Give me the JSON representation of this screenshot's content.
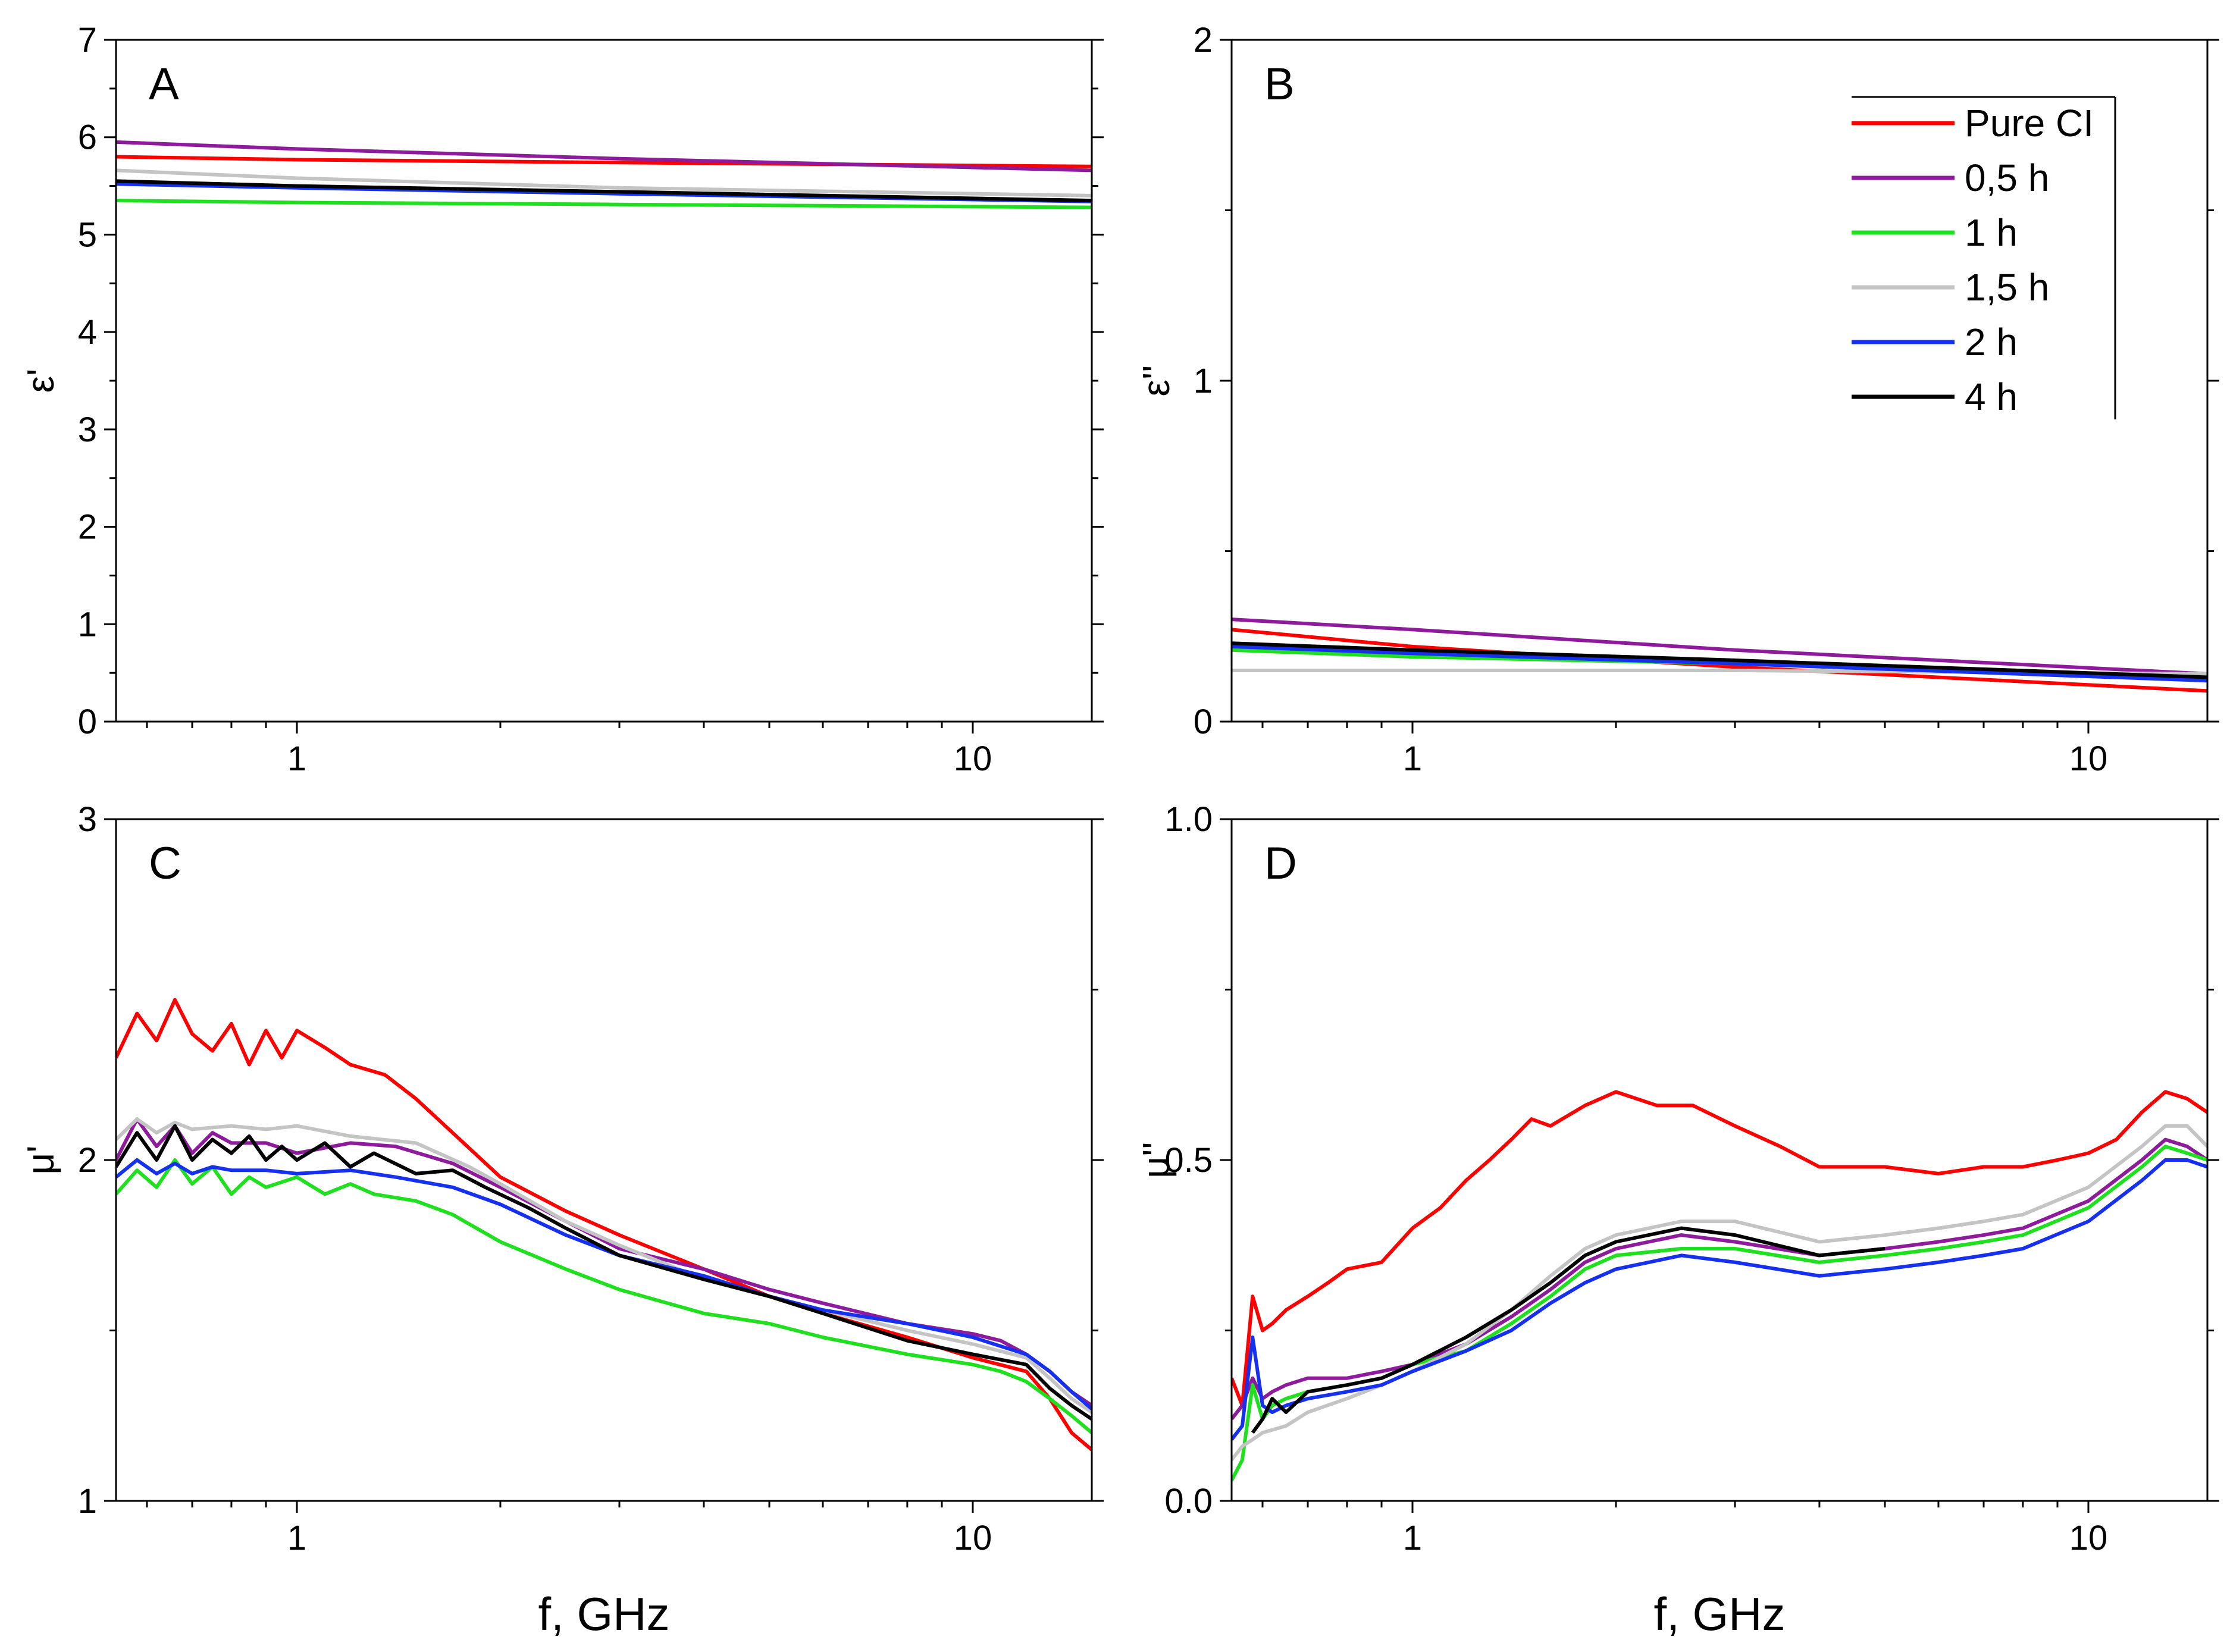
{
  "figure": {
    "xlabel": "f, GHz",
    "legend": [
      {
        "name": "Pure CI",
        "color": "#ff0000"
      },
      {
        "name": "0,5 h",
        "color": "#8e1a9c"
      },
      {
        "name": "1 h",
        "color": "#1ee01e"
      },
      {
        "name": "1,5 h",
        "color": "#c4c4c4"
      },
      {
        "name": "2 h",
        "color": "#1530ee"
      },
      {
        "name": "4 h",
        "color": "#000000"
      }
    ]
  },
  "chart_data": [
    {
      "type": "line",
      "panel": "A",
      "ylabel": "ε'",
      "xscale": "log",
      "xlim": [
        0.54,
        15
      ],
      "ylim": [
        0,
        7
      ],
      "xticks": [
        1,
        10
      ],
      "xticklabels": [
        "1",
        "10"
      ],
      "yticks": [
        0,
        1,
        2,
        3,
        4,
        5,
        6,
        7
      ],
      "yticklabels": [
        "0",
        "1",
        "2",
        "3",
        "4",
        "5",
        "6",
        "7"
      ],
      "series": [
        {
          "name": "Pure CI",
          "color": "#ff0000",
          "x": [
            0.54,
            1,
            3,
            15
          ],
          "y": [
            5.8,
            5.77,
            5.74,
            5.7
          ]
        },
        {
          "name": "0,5 h",
          "color": "#8e1a9c",
          "x": [
            0.54,
            1,
            3,
            15
          ],
          "y": [
            5.95,
            5.88,
            5.78,
            5.66
          ]
        },
        {
          "name": "1 h",
          "color": "#1ee01e",
          "x": [
            0.54,
            1,
            3,
            15
          ],
          "y": [
            5.35,
            5.33,
            5.31,
            5.28
          ]
        },
        {
          "name": "1,5 h",
          "color": "#c4c4c4",
          "x": [
            0.54,
            1,
            3,
            15
          ],
          "y": [
            5.66,
            5.58,
            5.48,
            5.4
          ]
        },
        {
          "name": "2 h",
          "color": "#1530ee",
          "x": [
            0.54,
            1,
            3,
            15
          ],
          "y": [
            5.52,
            5.48,
            5.42,
            5.34
          ]
        },
        {
          "name": "4 h",
          "color": "#000000",
          "x": [
            0.54,
            1,
            3,
            15
          ],
          "y": [
            5.55,
            5.5,
            5.44,
            5.35
          ]
        }
      ]
    },
    {
      "type": "line",
      "panel": "B",
      "ylabel": "ε''",
      "xscale": "log",
      "xlim": [
        0.54,
        15
      ],
      "ylim": [
        0,
        2
      ],
      "xticks": [
        1,
        10
      ],
      "xticklabels": [
        "1",
        "10"
      ],
      "yticks": [
        0,
        1,
        2
      ],
      "yticklabels": [
        "0",
        "1",
        "2"
      ],
      "series": [
        {
          "name": "Pure CI",
          "color": "#ff0000",
          "x": [
            0.54,
            1,
            3,
            15
          ],
          "y": [
            0.27,
            0.22,
            0.16,
            0.09
          ]
        },
        {
          "name": "0,5 h",
          "color": "#8e1a9c",
          "x": [
            0.54,
            1,
            3,
            15
          ],
          "y": [
            0.3,
            0.27,
            0.21,
            0.14
          ]
        },
        {
          "name": "1 h",
          "color": "#1ee01e",
          "x": [
            0.54,
            1,
            3,
            15
          ],
          "y": [
            0.21,
            0.19,
            0.17,
            0.13
          ]
        },
        {
          "name": "1,5 h",
          "color": "#c4c4c4",
          "x": [
            0.54,
            1,
            3,
            15
          ],
          "y": [
            0.15,
            0.15,
            0.15,
            0.14
          ]
        },
        {
          "name": "2 h",
          "color": "#1530ee",
          "x": [
            0.54,
            1,
            3,
            15
          ],
          "y": [
            0.22,
            0.2,
            0.17,
            0.12
          ]
        },
        {
          "name": "4 h",
          "color": "#000000",
          "x": [
            0.54,
            1,
            3,
            15
          ],
          "y": [
            0.23,
            0.21,
            0.18,
            0.13
          ]
        }
      ]
    },
    {
      "type": "line",
      "panel": "C",
      "ylabel": "μ'",
      "xscale": "log",
      "xlim": [
        0.54,
        15
      ],
      "ylim": [
        1,
        3
      ],
      "xticks": [
        1,
        10
      ],
      "xticklabels": [
        "1",
        "10"
      ],
      "yticks": [
        1,
        2,
        3
      ],
      "yticklabels": [
        "1",
        "2",
        "3"
      ],
      "series": [
        {
          "name": "Pure CI",
          "color": "#ff0000",
          "x": [
            0.54,
            0.58,
            0.62,
            0.66,
            0.7,
            0.75,
            0.8,
            0.85,
            0.9,
            0.95,
            1.0,
            1.1,
            1.2,
            1.35,
            1.5,
            1.7,
            2.0,
            2.5,
            3.0,
            4.0,
            5.0,
            6.0,
            8.0,
            10.0,
            12.0,
            13.0,
            14.0,
            15.0
          ],
          "y": [
            2.3,
            2.43,
            2.35,
            2.47,
            2.37,
            2.32,
            2.4,
            2.28,
            2.38,
            2.3,
            2.38,
            2.33,
            2.28,
            2.25,
            2.18,
            2.08,
            1.95,
            1.85,
            1.78,
            1.68,
            1.6,
            1.55,
            1.48,
            1.42,
            1.38,
            1.3,
            1.2,
            1.15
          ]
        },
        {
          "name": "0,5 h",
          "color": "#8e1a9c",
          "x": [
            0.54,
            0.58,
            0.62,
            0.66,
            0.7,
            0.75,
            0.8,
            0.9,
            1.0,
            1.2,
            1.4,
            1.7,
            2.0,
            2.5,
            3.0,
            4.0,
            5.0,
            6.0,
            8.0,
            10.0,
            11.0,
            12.0,
            13.0,
            14.0,
            15.0
          ],
          "y": [
            2.0,
            2.12,
            2.04,
            2.1,
            2.02,
            2.08,
            2.05,
            2.05,
            2.02,
            2.05,
            2.04,
            1.99,
            1.92,
            1.82,
            1.74,
            1.68,
            1.62,
            1.58,
            1.52,
            1.49,
            1.47,
            1.43,
            1.38,
            1.32,
            1.28
          ]
        },
        {
          "name": "1 h",
          "color": "#1ee01e",
          "x": [
            0.54,
            0.58,
            0.62,
            0.66,
            0.7,
            0.75,
            0.8,
            0.85,
            0.9,
            1.0,
            1.1,
            1.2,
            1.3,
            1.5,
            1.7,
            2.0,
            2.5,
            3.0,
            4.0,
            5.0,
            6.0,
            8.0,
            10.0,
            11.0,
            12.0,
            13.0,
            14.0,
            15.0
          ],
          "y": [
            1.9,
            1.97,
            1.92,
            2.0,
            1.93,
            1.98,
            1.9,
            1.95,
            1.92,
            1.95,
            1.9,
            1.93,
            1.9,
            1.88,
            1.84,
            1.76,
            1.68,
            1.62,
            1.55,
            1.52,
            1.48,
            1.43,
            1.4,
            1.38,
            1.35,
            1.3,
            1.25,
            1.2
          ]
        },
        {
          "name": "1,5 h",
          "color": "#c4c4c4",
          "x": [
            0.54,
            0.58,
            0.62,
            0.66,
            0.7,
            0.8,
            0.9,
            1.0,
            1.2,
            1.5,
            1.8,
            2.0,
            2.5,
            3.0,
            4.0,
            5.0,
            6.0,
            8.0,
            10.0,
            12.0,
            13.0,
            14.0,
            15.0
          ],
          "y": [
            2.06,
            2.12,
            2.08,
            2.11,
            2.09,
            2.1,
            2.09,
            2.1,
            2.07,
            2.05,
            1.98,
            1.93,
            1.82,
            1.75,
            1.65,
            1.6,
            1.56,
            1.5,
            1.46,
            1.42,
            1.36,
            1.3,
            1.26
          ]
        },
        {
          "name": "2 h",
          "color": "#1530ee",
          "x": [
            0.54,
            0.58,
            0.62,
            0.66,
            0.7,
            0.75,
            0.8,
            0.9,
            1.0,
            1.2,
            1.4,
            1.7,
            2.0,
            2.5,
            3.0,
            4.0,
            5.0,
            6.0,
            8.0,
            10.0,
            12.0,
            13.0,
            14.0,
            15.0
          ],
          "y": [
            1.95,
            2.0,
            1.96,
            1.99,
            1.96,
            1.98,
            1.97,
            1.97,
            1.96,
            1.97,
            1.95,
            1.92,
            1.87,
            1.78,
            1.72,
            1.66,
            1.6,
            1.56,
            1.52,
            1.48,
            1.43,
            1.38,
            1.32,
            1.27
          ]
        },
        {
          "name": "4 h",
          "color": "#000000",
          "x": [
            0.54,
            0.58,
            0.62,
            0.66,
            0.7,
            0.75,
            0.8,
            0.85,
            0.9,
            0.95,
            1.0,
            1.1,
            1.2,
            1.3,
            1.5,
            1.7,
            1.9,
            2.2,
            2.5,
            3.0,
            4.0,
            5.0,
            6.0,
            8.0,
            10.0,
            12.0,
            13.0,
            14.0,
            15.0
          ],
          "y": [
            1.98,
            2.08,
            2.0,
            2.1,
            2.0,
            2.06,
            2.02,
            2.07,
            2.0,
            2.04,
            2.0,
            2.05,
            1.98,
            2.02,
            1.96,
            1.97,
            1.92,
            1.86,
            1.8,
            1.72,
            1.65,
            1.6,
            1.55,
            1.47,
            1.43,
            1.4,
            1.33,
            1.28,
            1.24
          ]
        }
      ]
    },
    {
      "type": "line",
      "panel": "D",
      "ylabel": "μ''",
      "xscale": "log",
      "xlim": [
        0.54,
        15
      ],
      "ylim": [
        0,
        1
      ],
      "xticks": [
        1,
        10
      ],
      "xticklabels": [
        "1",
        "10"
      ],
      "yticks": [
        0,
        0.5,
        1
      ],
      "yticklabels": [
        "0.0",
        "0.5",
        "1.0"
      ],
      "series": [
        {
          "name": "Pure CI",
          "color": "#ff0000",
          "x": [
            0.54,
            0.56,
            0.58,
            0.6,
            0.62,
            0.65,
            0.7,
            0.75,
            0.8,
            0.9,
            1.0,
            1.1,
            1.2,
            1.3,
            1.4,
            1.5,
            1.6,
            1.8,
            2.0,
            2.3,
            2.6,
            3.0,
            3.5,
            4.0,
            5.0,
            6.0,
            7.0,
            8.0,
            9.0,
            10.0,
            11.0,
            12.0,
            13.0,
            14.0,
            15.0
          ],
          "y": [
            0.18,
            0.14,
            0.3,
            0.25,
            0.26,
            0.28,
            0.3,
            0.32,
            0.34,
            0.35,
            0.4,
            0.43,
            0.47,
            0.5,
            0.53,
            0.56,
            0.55,
            0.58,
            0.6,
            0.58,
            0.58,
            0.55,
            0.52,
            0.49,
            0.49,
            0.48,
            0.49,
            0.49,
            0.5,
            0.51,
            0.53,
            0.57,
            0.6,
            0.59,
            0.57
          ]
        },
        {
          "name": "0,5 h",
          "color": "#8e1a9c",
          "x": [
            0.54,
            0.56,
            0.58,
            0.6,
            0.62,
            0.65,
            0.7,
            0.8,
            0.9,
            1.0,
            1.2,
            1.4,
            1.6,
            1.8,
            2.0,
            2.5,
            3.0,
            4.0,
            5.0,
            6.0,
            7.0,
            8.0,
            10.0,
            12.0,
            13.0,
            14.0,
            15.0
          ],
          "y": [
            0.12,
            0.14,
            0.18,
            0.15,
            0.16,
            0.17,
            0.18,
            0.18,
            0.19,
            0.2,
            0.23,
            0.27,
            0.31,
            0.35,
            0.37,
            0.39,
            0.38,
            0.36,
            0.37,
            0.38,
            0.39,
            0.4,
            0.44,
            0.5,
            0.53,
            0.52,
            0.5
          ]
        },
        {
          "name": "1 h",
          "color": "#1ee01e",
          "x": [
            0.54,
            0.56,
            0.58,
            0.6,
            0.62,
            0.65,
            0.7,
            0.8,
            0.9,
            1.0,
            1.2,
            1.4,
            1.6,
            1.8,
            2.0,
            2.5,
            3.0,
            4.0,
            5.0,
            6.0,
            7.0,
            8.0,
            10.0,
            12.0,
            13.0,
            14.0,
            15.0
          ],
          "y": [
            0.03,
            0.06,
            0.17,
            0.12,
            0.14,
            0.15,
            0.16,
            0.17,
            0.18,
            0.2,
            0.22,
            0.26,
            0.3,
            0.34,
            0.36,
            0.37,
            0.37,
            0.35,
            0.36,
            0.37,
            0.38,
            0.39,
            0.43,
            0.49,
            0.52,
            0.51,
            0.5
          ]
        },
        {
          "name": "1,5 h",
          "color": "#c4c4c4",
          "x": [
            0.54,
            0.56,
            0.58,
            0.6,
            0.65,
            0.7,
            0.8,
            0.9,
            1.0,
            1.2,
            1.4,
            1.6,
            1.8,
            2.0,
            2.5,
            3.0,
            4.0,
            5.0,
            6.0,
            7.0,
            8.0,
            10.0,
            12.0,
            13.0,
            14.0,
            15.0
          ],
          "y": [
            0.06,
            0.08,
            0.09,
            0.1,
            0.11,
            0.13,
            0.15,
            0.17,
            0.19,
            0.23,
            0.28,
            0.33,
            0.37,
            0.39,
            0.41,
            0.41,
            0.38,
            0.39,
            0.4,
            0.41,
            0.42,
            0.46,
            0.52,
            0.55,
            0.55,
            0.52
          ]
        },
        {
          "name": "2 h",
          "color": "#1530ee",
          "x": [
            0.54,
            0.56,
            0.58,
            0.6,
            0.62,
            0.65,
            0.7,
            0.8,
            0.9,
            1.0,
            1.2,
            1.4,
            1.6,
            1.8,
            2.0,
            2.5,
            3.0,
            4.0,
            5.0,
            6.0,
            7.0,
            8.0,
            10.0,
            12.0,
            13.0,
            14.0,
            15.0
          ],
          "y": [
            0.09,
            0.11,
            0.24,
            0.14,
            0.13,
            0.14,
            0.15,
            0.16,
            0.17,
            0.19,
            0.22,
            0.25,
            0.29,
            0.32,
            0.34,
            0.36,
            0.35,
            0.33,
            0.34,
            0.35,
            0.36,
            0.37,
            0.41,
            0.47,
            0.5,
            0.5,
            0.49
          ]
        },
        {
          "name": "4 h",
          "color": "#000000",
          "x": [
            0.58,
            0.6,
            0.62,
            0.65,
            0.7,
            0.8,
            0.9,
            1.0,
            1.2,
            1.4,
            1.6,
            1.8,
            2.0,
            2.5,
            3.0,
            4.0,
            5.0
          ],
          "y": [
            0.1,
            0.12,
            0.15,
            0.13,
            0.16,
            0.17,
            0.18,
            0.2,
            0.24,
            0.28,
            0.32,
            0.36,
            0.38,
            0.4,
            0.39,
            0.36,
            0.37
          ]
        }
      ]
    }
  ]
}
